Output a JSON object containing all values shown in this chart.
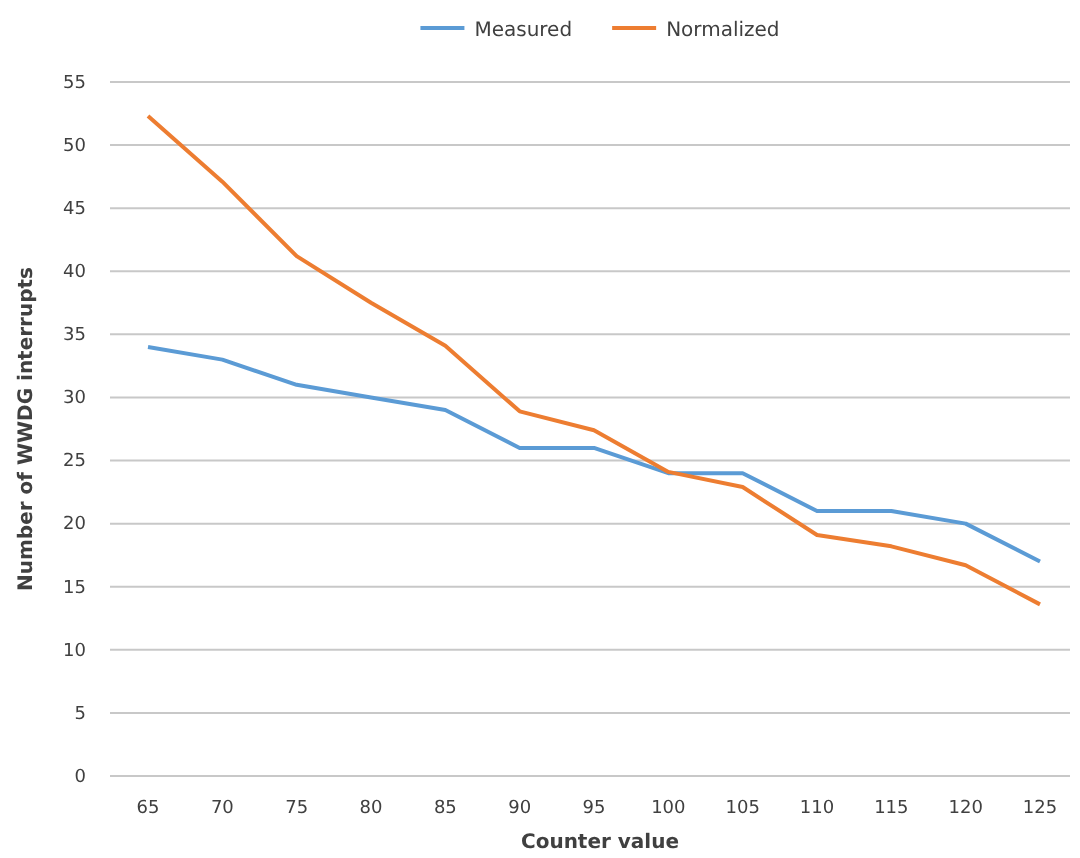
{
  "chart_data": {
    "type": "line",
    "xlabel": "Counter value",
    "ylabel": "Number of WWDG interrupts",
    "categories": [
      "65",
      "70",
      "75",
      "80",
      "85",
      "90",
      "95",
      "100",
      "105",
      "110",
      "115",
      "120",
      "125"
    ],
    "series": [
      {
        "name": "Measured",
        "color": "#5b9bd5",
        "values": [
          34,
          33,
          31,
          30,
          29,
          26,
          26,
          24,
          24,
          21,
          21,
          20,
          17
        ]
      },
      {
        "name": "Normalized",
        "color": "#ed7d31",
        "values": [
          52.3,
          47.1,
          41.2,
          37.5,
          34.1,
          28.9,
          27.4,
          24.1,
          22.9,
          19.1,
          18.2,
          16.7,
          13.6
        ]
      }
    ],
    "ylim": [
      0,
      55
    ],
    "yticks": [
      0,
      5,
      10,
      15,
      20,
      25,
      30,
      35,
      40,
      45,
      50,
      55
    ],
    "grid": "y",
    "legend": "top",
    "marker": "none",
    "line_style": "solid"
  }
}
